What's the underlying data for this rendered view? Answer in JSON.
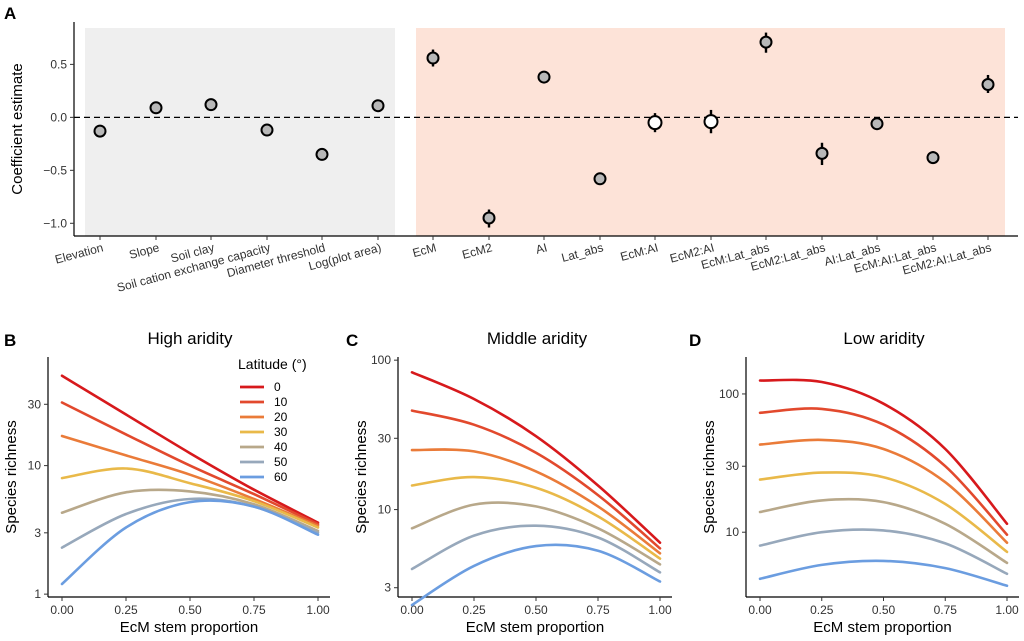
{
  "panel_a": {
    "letter": "A",
    "chart_data": {
      "type": "scatter",
      "ylabel": "Coefficient estimate",
      "ylim": [
        -1.12,
        0.9
      ],
      "yticks": [
        -1.0,
        -0.5,
        0.0,
        0.5
      ],
      "ytick_labels": [
        "−1.0",
        "−0.5",
        "0.0",
        "0.5"
      ],
      "reference_line": 0,
      "groups": [
        {
          "name": "environment",
          "color": "#efefef",
          "count": 6
        },
        {
          "name": "mycorrhiza",
          "color": "#fde3d8",
          "count": 11
        }
      ],
      "categories": [
        "Elevation",
        "Slope",
        "Soil clay",
        "Soil cation exchange capacity",
        "Diameter threshold",
        "Log(plot area)",
        "EcM",
        "EcM2",
        "AI",
        "Lat_abs",
        "EcM:AI",
        "EcM2:AI",
        "EcM:Lat_abs",
        "EcM2:Lat_abs",
        "AI:Lat_abs",
        "EcM:AI:Lat_abs",
        "EcM2:AI:Lat_abs"
      ],
      "estimates": [
        -0.13,
        0.09,
        0.12,
        -0.12,
        -0.35,
        0.11,
        0.56,
        -0.95,
        0.38,
        -0.58,
        -0.05,
        -0.04,
        0.71,
        -0.34,
        -0.06,
        -0.38,
        0.31
      ],
      "ci_low": [
        -0.16,
        0.07,
        0.1,
        -0.15,
        -0.38,
        0.09,
        0.48,
        -1.04,
        0.35,
        -0.62,
        -0.14,
        -0.15,
        0.61,
        -0.45,
        -0.09,
        -0.44,
        0.23
      ],
      "ci_high": [
        -0.1,
        0.11,
        0.15,
        -0.09,
        -0.32,
        0.14,
        0.64,
        -0.87,
        0.41,
        -0.55,
        0.04,
        0.07,
        0.8,
        -0.24,
        -0.03,
        -0.32,
        0.4
      ],
      "significant": [
        true,
        true,
        true,
        true,
        true,
        true,
        true,
        true,
        true,
        true,
        false,
        false,
        true,
        true,
        true,
        true,
        true
      ],
      "marker_fill_significant": "#b8b8b8",
      "marker_fill_nonsignificant": "#ffffff"
    }
  },
  "panels": [
    {
      "letter": "B",
      "chart_data": {
        "type": "line",
        "title": "High aridity",
        "xlabel": "EcM stem proportion",
        "ylabel": "Species richness",
        "log_y": true,
        "xlim": [
          0,
          1
        ],
        "ylim": [
          0.95,
          70
        ],
        "xticks": [
          0,
          0.25,
          0.5,
          0.75,
          1
        ],
        "xtick_labels": [
          "0.00",
          "0.25",
          "0.50",
          "0.75",
          "1.00"
        ],
        "yticks": [
          1,
          3,
          10,
          30
        ],
        "ytick_labels": [
          "1",
          "3",
          "10",
          "30"
        ],
        "x": [
          0,
          0.25,
          0.5,
          0.75,
          1
        ],
        "series": [
          {
            "name": "0",
            "color": "#d7191c",
            "values": [
              50,
              25,
              12.5,
              6.5,
              3.6
            ]
          },
          {
            "name": "10",
            "color": "#e2492d",
            "values": [
              31,
              17.5,
              10,
              6,
              3.5
            ]
          },
          {
            "name": "20",
            "color": "#ea7b39",
            "values": [
              17,
              12,
              8.5,
              5.5,
              3.4
            ]
          },
          {
            "name": "30",
            "color": "#e9b949",
            "values": [
              8,
              9.5,
              7.3,
              5.3,
              3.3
            ]
          },
          {
            "name": "40",
            "color": "#b8a88a",
            "values": [
              4.3,
              6.2,
              6.3,
              5.0,
              3.1
            ]
          },
          {
            "name": "50",
            "color": "#97a8bb",
            "values": [
              2.3,
              4.2,
              5.5,
              4.8,
              3.0
            ]
          },
          {
            "name": "60",
            "color": "#6b9de0",
            "values": [
              1.2,
              3.3,
              5.2,
              4.8,
              2.9
            ]
          }
        ],
        "legend": {
          "title": "Latitude (°)",
          "position": "top-right"
        }
      }
    },
    {
      "letter": "C",
      "chart_data": {
        "type": "line",
        "title": "Middle aridity",
        "xlabel": "EcM stem proportion",
        "ylabel": "Species richness",
        "log_y": true,
        "xlim": [
          0,
          1
        ],
        "ylim": [
          2.6,
          105
        ],
        "xticks": [
          0,
          0.25,
          0.5,
          0.75,
          1
        ],
        "xtick_labels": [
          "0.00",
          "0.25",
          "0.50",
          "0.75",
          "1.00"
        ],
        "yticks": [
          3,
          10,
          30,
          100
        ],
        "ytick_labels": [
          "3",
          "10",
          "30",
          "100"
        ],
        "x": [
          0,
          0.25,
          0.5,
          0.75,
          1
        ],
        "series": [
          {
            "name": "0",
            "color": "#d7191c",
            "values": [
              83,
              55,
              31,
              14.5,
              6.0
            ]
          },
          {
            "name": "10",
            "color": "#e2492d",
            "values": [
              46,
              37,
              24,
              12.5,
              5.5
            ]
          },
          {
            "name": "20",
            "color": "#ea7b39",
            "values": [
              25,
              24.5,
              18,
              10.5,
              5.1
            ]
          },
          {
            "name": "30",
            "color": "#e9b949",
            "values": [
              14.5,
              16.5,
              14,
              9,
              4.7
            ]
          },
          {
            "name": "40",
            "color": "#b8a88a",
            "values": [
              7.5,
              10.8,
              10.5,
              7.5,
              4.3
            ]
          },
          {
            "name": "50",
            "color": "#97a8bb",
            "values": [
              4.0,
              6.7,
              7.8,
              6.5,
              3.8
            ]
          },
          {
            "name": "60",
            "color": "#6b9de0",
            "values": [
              2.3,
              4.2,
              5.7,
              5.3,
              3.3
            ]
          }
        ]
      }
    },
    {
      "letter": "D",
      "chart_data": {
        "type": "line",
        "title": "Low aridity",
        "xlabel": "EcM stem proportion",
        "ylabel": "Species richness",
        "log_y": true,
        "xlim": [
          0,
          1
        ],
        "ylim": [
          3.4,
          185
        ],
        "xticks": [
          0,
          0.25,
          0.5,
          0.75,
          1
        ],
        "xtick_labels": [
          "0.00",
          "0.25",
          "0.50",
          "0.75",
          "1.00"
        ],
        "yticks": [
          10,
          30,
          100
        ],
        "ytick_labels": [
          "10",
          "30",
          "100"
        ],
        "x": [
          0,
          0.25,
          0.5,
          0.75,
          1
        ],
        "series": [
          {
            "name": "0",
            "color": "#d7191c",
            "values": [
              125,
              122,
              85,
              40,
              11.5
            ]
          },
          {
            "name": "10",
            "color": "#e2492d",
            "values": [
              73,
              78,
              60,
              30,
              9.6
            ]
          },
          {
            "name": "20",
            "color": "#ea7b39",
            "values": [
              43,
              46.5,
              40,
              23,
              8.4
            ]
          },
          {
            "name": "30",
            "color": "#e9b949",
            "values": [
              24,
              27,
              25,
              16,
              7.2
            ]
          },
          {
            "name": "40",
            "color": "#b8a88a",
            "values": [
              14,
              17,
              16.5,
              11.5,
              6.0
            ]
          },
          {
            "name": "50",
            "color": "#97a8bb",
            "values": [
              8,
              10,
              10.3,
              8.3,
              5.0
            ]
          },
          {
            "name": "60",
            "color": "#6b9de0",
            "values": [
              4.6,
              5.8,
              6.2,
              5.5,
              4.1
            ]
          }
        ]
      }
    }
  ]
}
